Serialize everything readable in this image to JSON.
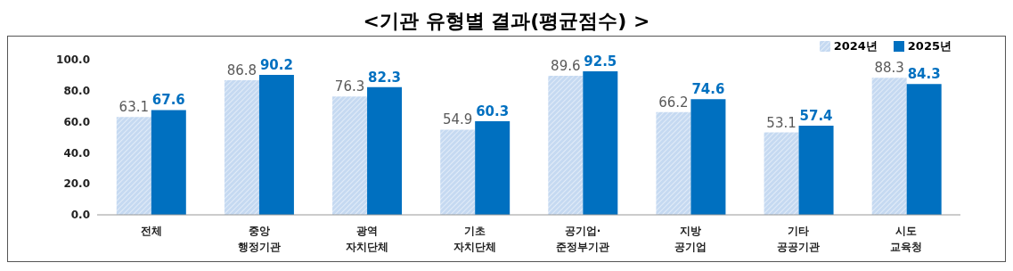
{
  "chart_data": {
    "type": "bar",
    "title": "<기관 유형별 결과(평균점수) >",
    "categories": [
      "전체",
      "중앙\n행정기관",
      "광역\n자치단체",
      "기초\n자치단체",
      "공기업·\n준정부기관",
      "지방\n공기업",
      "기타\n공공기관",
      "시도\n교육청"
    ],
    "series": [
      {
        "name": "2024년",
        "color": "#c5d9f1",
        "values": [
          63.1,
          86.8,
          76.3,
          54.9,
          89.6,
          66.2,
          53.1,
          88.3
        ]
      },
      {
        "name": "2025년",
        "color": "#0070c0",
        "values": [
          67.6,
          90.2,
          82.3,
          60.3,
          92.5,
          74.6,
          57.4,
          84.3
        ]
      }
    ],
    "ylim": [
      0,
      100
    ],
    "yticks": [
      {
        "value": 0,
        "label": "0.0"
      },
      {
        "value": 20,
        "label": "20.0"
      },
      {
        "value": 40,
        "label": "40.0"
      },
      {
        "value": 60,
        "label": "60.0"
      },
      {
        "value": 80,
        "label": "80.0"
      },
      {
        "value": 100,
        "label": "100.0"
      }
    ],
    "data_labels": true,
    "grid": false,
    "legend": "top right"
  }
}
